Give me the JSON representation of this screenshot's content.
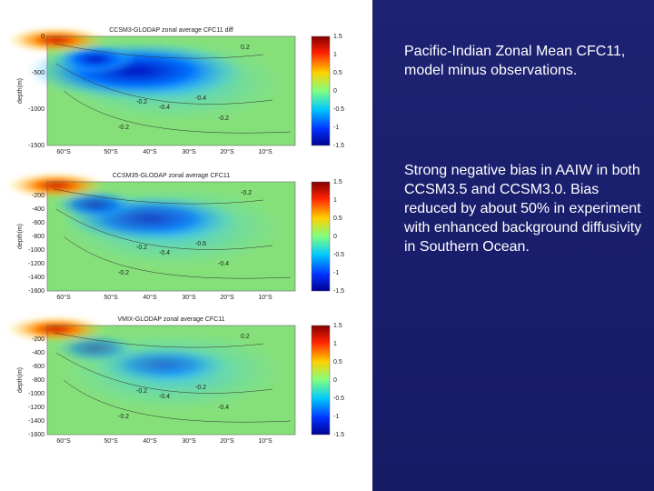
{
  "panels": [
    {
      "title": "CCSM3-GLODAP zonal average CFC11 diff",
      "y_label": "depth(m)",
      "y_ticks": [
        "0",
        "-500",
        "-1000",
        "-1500"
      ],
      "x_ticks": [
        "60°S",
        "50°S",
        "40°S",
        "30°S",
        "20°S",
        "10°S"
      ],
      "colorbar_ticks": [
        "1.5",
        "1",
        "0.5",
        "0",
        "-0.5",
        "-1",
        "-1.5"
      ],
      "contour_labels": [
        "-0.2",
        "-0.4",
        "-0.4",
        "-0.2",
        "-0.2",
        "0.2"
      ]
    },
    {
      "title": "CCSM35-GLODAP zonal average CFC11",
      "y_label": "depth(m)",
      "y_ticks": [
        "-200",
        "-400",
        "-600",
        "-800",
        "-1000",
        "-1200",
        "-1400",
        "-1600"
      ],
      "x_ticks": [
        "60°S",
        "50°S",
        "40°S",
        "30°S",
        "20°S",
        "10°S"
      ],
      "colorbar_ticks": [
        "1.5",
        "1",
        "0.5",
        "0",
        "-0.5",
        "-1",
        "-1.5"
      ],
      "contour_labels": [
        "-0.2",
        "-0.4",
        "-0.6",
        "-0.2",
        "-0.4",
        "-0.2"
      ]
    },
    {
      "title": "VMIX-GLODAP zonal average CFC11",
      "y_label": "depth(m)",
      "y_ticks": [
        "-200",
        "-400",
        "-600",
        "-800",
        "-1000",
        "-1200",
        "-1400",
        "-1600"
      ],
      "x_ticks": [
        "60°S",
        "50°S",
        "40°S",
        "30°S",
        "20°S",
        "10°S"
      ],
      "colorbar_ticks": [
        "1.5",
        "1",
        "0.5",
        "0",
        "-0.5",
        "-1",
        "-1.5"
      ],
      "contour_labels": [
        "-0.2",
        "-0.4",
        "-0.2",
        "-0.2",
        "-0.4",
        "0.2"
      ]
    }
  ],
  "text": {
    "heading": "Pacific-Indian Zonal Mean CFC11, model minus observations.",
    "body": "Strong negative bias in AAIW in both CCSM3.5 and CCSM3.0. Bias reduced by about 50% in experiment with enhanced background diffusivity in Southern Ocean."
  }
}
